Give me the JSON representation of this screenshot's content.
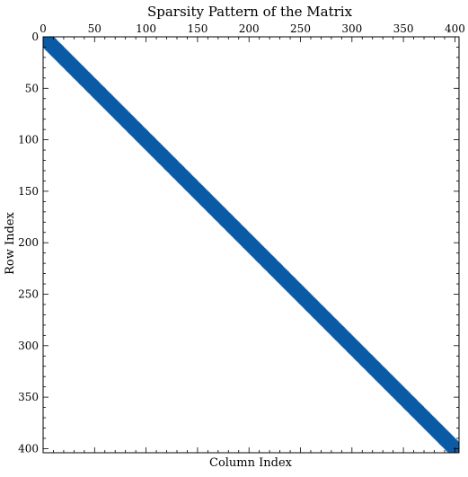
{
  "chart_data": {
    "type": "heatmap",
    "subtype": "sparsity-pattern",
    "title": "Sparsity Pattern of the Matrix",
    "xlabel": "Column Index",
    "ylabel": "Row Index",
    "x_ticks": [
      "0",
      "50",
      "100",
      "150",
      "200",
      "250",
      "300",
      "350",
      "400"
    ],
    "y_ticks": [
      "0",
      "50",
      "100",
      "150",
      "200",
      "250",
      "300",
      "350",
      "400"
    ],
    "x_axis_position": "top",
    "y_axis_inverted": true,
    "matrix": {
      "rows": 404,
      "cols": 404
    },
    "nonzero_band": {
      "lower_bandwidth": 10,
      "upper_bandwidth": 10
    },
    "xlim": [
      0,
      404
    ],
    "ylim": [
      404,
      0
    ],
    "grid": false,
    "marker_color": "#0b5aa6",
    "frame_color": "#000000"
  }
}
